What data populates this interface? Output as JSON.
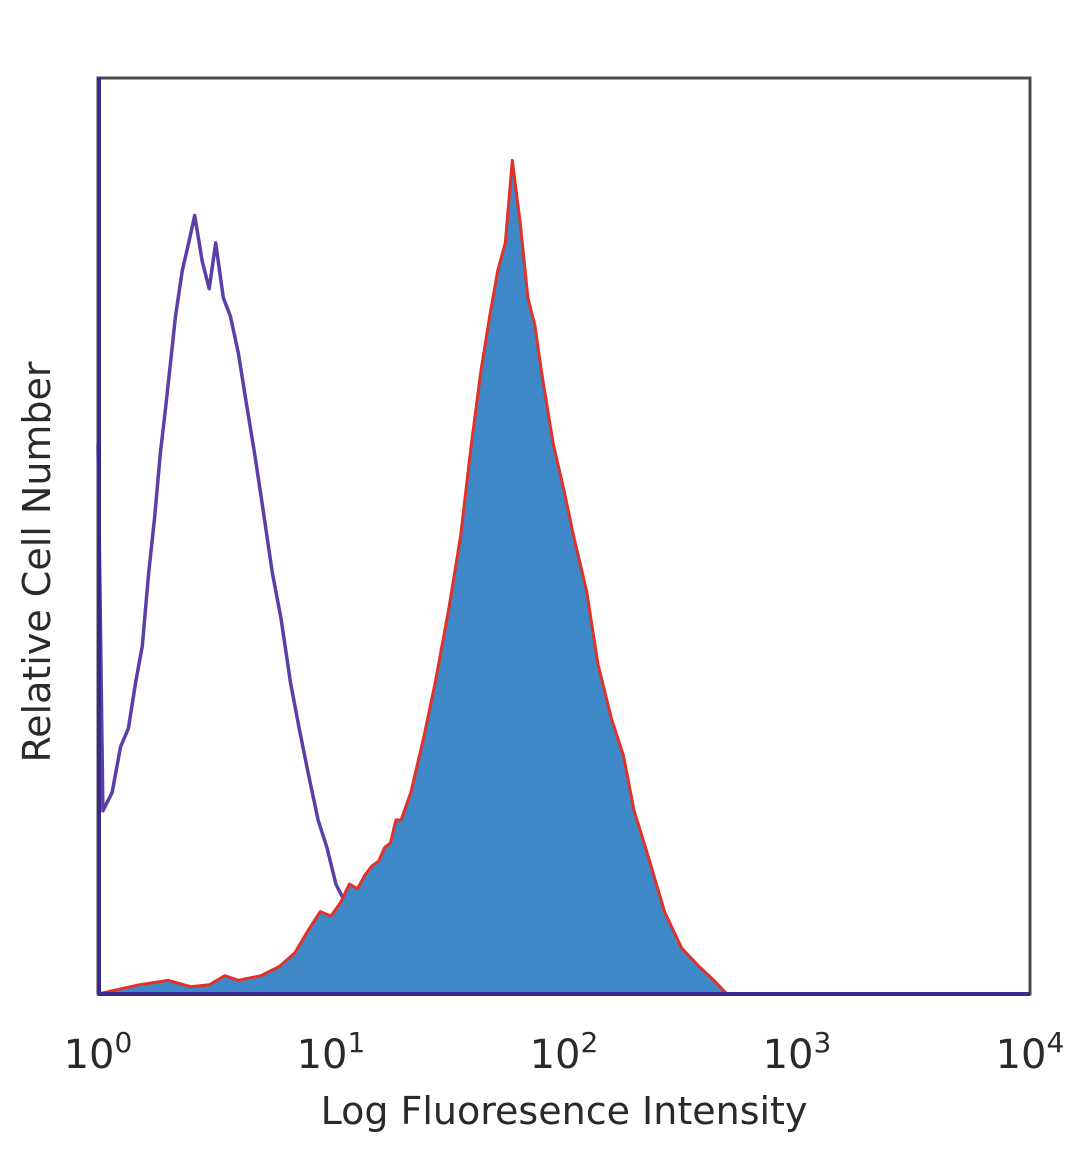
{
  "chart_data": {
    "type": "area",
    "title": "",
    "xlabel": "Log Fluoresence Intensity",
    "ylabel": "Relative Cell Number",
    "x_scale": "log",
    "xlim": [
      1,
      10000
    ],
    "ylim": [
      0,
      1
    ],
    "x_ticks": [
      {
        "base": "10",
        "exp": "0"
      },
      {
        "base": "10",
        "exp": "1"
      },
      {
        "base": "10",
        "exp": "2"
      },
      {
        "base": "10",
        "exp": "3"
      },
      {
        "base": "10",
        "exp": "4"
      }
    ],
    "grid": false,
    "legend": "none",
    "colors": {
      "control_line": "#5b3fa6",
      "stained_fill": "#3f88c8",
      "stained_edge": "#e0322b",
      "frame": "#4a4a4a",
      "baseline": "#3b2a8c"
    },
    "series": [
      {
        "style": "line",
        "x": [
          1.0,
          1.05,
          1.15,
          1.25,
          1.35,
          1.45,
          1.55,
          1.65,
          1.75,
          1.85,
          1.95,
          2.05,
          2.15,
          2.3,
          2.45,
          2.6,
          2.8,
          3.0,
          3.2,
          3.45,
          3.7,
          4.0,
          4.3,
          4.7,
          5.1,
          5.6,
          6.1,
          6.7,
          7.3,
          8.0,
          8.8,
          9.6,
          10.5,
          11.5,
          12.6,
          13.8,
          15.1,
          16.6,
          18.2,
          20.0,
          22.5,
          26,
          30,
          35,
          40,
          50
        ],
        "y": [
          0.6,
          0.2,
          0.22,
          0.27,
          0.29,
          0.34,
          0.38,
          0.46,
          0.52,
          0.59,
          0.64,
          0.69,
          0.74,
          0.79,
          0.82,
          0.85,
          0.8,
          0.77,
          0.82,
          0.76,
          0.74,
          0.7,
          0.65,
          0.59,
          0.53,
          0.46,
          0.41,
          0.34,
          0.29,
          0.24,
          0.19,
          0.16,
          0.12,
          0.1,
          0.08,
          0.06,
          0.05,
          0.04,
          0.025,
          0.02,
          0.012,
          0.008,
          0.01,
          0.004,
          0.005,
          0.0
        ]
      },
      {
        "style": "filled",
        "x": [
          1.0,
          1.5,
          2.0,
          2.5,
          3.0,
          3.5,
          4.0,
          5.0,
          6.0,
          7.0,
          8.0,
          9.0,
          10.0,
          11.0,
          12.0,
          13.0,
          14.0,
          15.0,
          16.0,
          17.0,
          18.0,
          19.0,
          20.0,
          22.0,
          25.0,
          28.0,
          32.0,
          36.0,
          40.0,
          44.0,
          48.0,
          52.0,
          56.0,
          60.0,
          65.0,
          70.0,
          75.0,
          80.0,
          90.0,
          100.0,
          110.0,
          125.0,
          140.0,
          160.0,
          180.0,
          200.0,
          230.0,
          270.0,
          320.0,
          380.0,
          440.0,
          500.0
        ],
        "y": [
          0.0,
          0.01,
          0.015,
          0.008,
          0.01,
          0.02,
          0.015,
          0.02,
          0.03,
          0.045,
          0.07,
          0.09,
          0.085,
          0.1,
          0.12,
          0.115,
          0.13,
          0.14,
          0.145,
          0.16,
          0.165,
          0.19,
          0.19,
          0.22,
          0.28,
          0.34,
          0.42,
          0.5,
          0.6,
          0.68,
          0.74,
          0.79,
          0.82,
          0.91,
          0.84,
          0.76,
          0.73,
          0.68,
          0.6,
          0.55,
          0.5,
          0.44,
          0.36,
          0.3,
          0.26,
          0.2,
          0.15,
          0.09,
          0.05,
          0.03,
          0.015,
          0.0
        ]
      }
    ]
  }
}
